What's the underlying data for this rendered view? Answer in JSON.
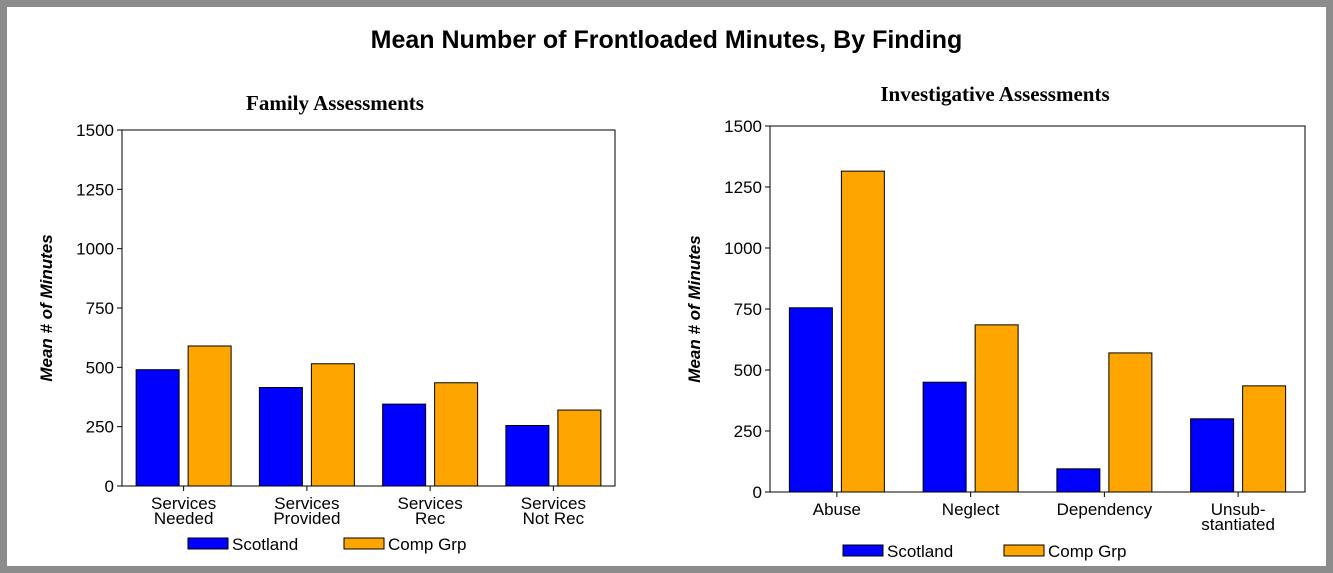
{
  "title": "Mean Number of Frontloaded Minutes, By Finding",
  "colors": {
    "Scotland": "#0000ff",
    "Comp Grp": "#ffa500"
  },
  "chart_data": [
    {
      "type": "bar",
      "title": "Family Assessments",
      "ylabel": "Mean # of Minutes",
      "xlabel": "",
      "ylim": [
        0,
        1500
      ],
      "yticks": [
        0,
        250,
        500,
        750,
        1000,
        1250,
        1500
      ],
      "categories": [
        [
          "Services",
          "Needed"
        ],
        [
          "Services",
          "Provided"
        ],
        [
          "Services",
          "Rec"
        ],
        [
          "Services",
          "Not Rec"
        ]
      ],
      "series": [
        {
          "name": "Scotland",
          "values": [
            490,
            415,
            345,
            255
          ]
        },
        {
          "name": "Comp Grp",
          "values": [
            590,
            515,
            435,
            320
          ]
        }
      ],
      "grid": false,
      "legend": "bottom"
    },
    {
      "type": "bar",
      "title": "Investigative Assessments",
      "ylabel": "Mean # of Minutes",
      "xlabel": "",
      "ylim": [
        0,
        1500
      ],
      "yticks": [
        0,
        250,
        500,
        750,
        1000,
        1250,
        1500
      ],
      "categories": [
        [
          "Abuse"
        ],
        [
          "Neglect"
        ],
        [
          "Dependency"
        ],
        [
          "Unsub-",
          "stantiated"
        ]
      ],
      "series": [
        {
          "name": "Scotland",
          "values": [
            755,
            450,
            95,
            300
          ]
        },
        {
          "name": "Comp Grp",
          "values": [
            1315,
            685,
            570,
            435
          ]
        }
      ],
      "grid": false,
      "legend": "bottom"
    }
  ]
}
